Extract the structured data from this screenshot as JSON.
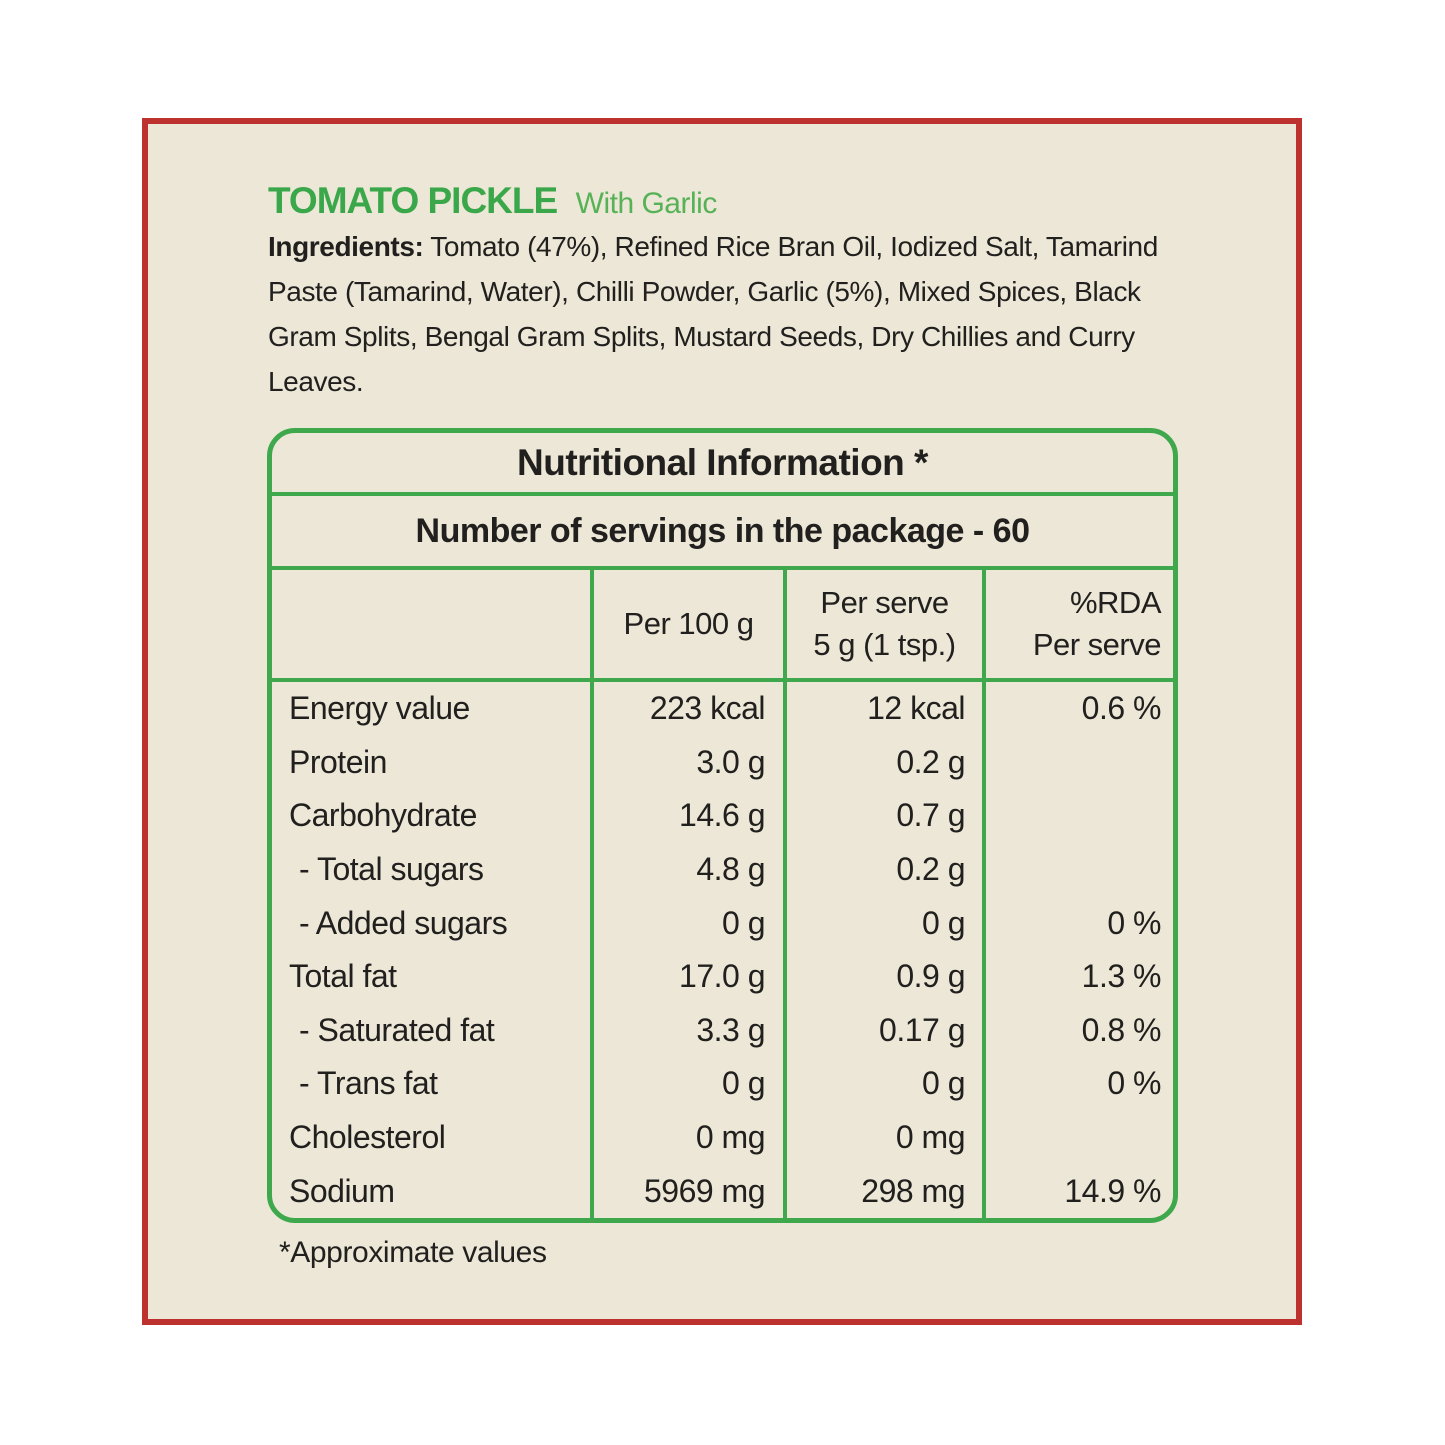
{
  "colors": {
    "frame_red": "#bd322f",
    "table_green": "#3fa84c",
    "title_green": "#3aa74a",
    "subtitle_green": "#57b257",
    "card_cream": "#ece7d6",
    "text_dark": "#21201e"
  },
  "header": {
    "title": "TOMATO PICKLE",
    "subtitle": "With Garlic"
  },
  "ingredients": {
    "label": "Ingredients:",
    "text": " Tomato (47%), Refined Rice Bran Oil, Iodized Salt, Tamarind Paste (Tamarind, Water), Chilli Powder, Garlic (5%), Mixed Spices, Black Gram Splits, Bengal Gram Splits, Mustard Seeds, Dry Chillies and Curry Leaves."
  },
  "table": {
    "title": "Nutritional Information *",
    "servings": "Number of servings in the package - 60",
    "columns": {
      "per_100g": "Per 100 g",
      "per_serve_line1": "Per serve",
      "per_serve_line2": "5 g (1 tsp.)",
      "rda_line1": "%RDA",
      "rda_line2": "Per serve"
    },
    "rows": [
      {
        "name": "Energy value",
        "per_100g": "223 kcal",
        "per_serve": "12 kcal",
        "rda": "0.6 %"
      },
      {
        "name": "Protein",
        "per_100g": "3.0 g",
        "per_serve": "0.2 g",
        "rda": ""
      },
      {
        "name": "Carbohydrate",
        "per_100g": "14.6 g",
        "per_serve": "0.7 g",
        "rda": ""
      },
      {
        "name": "- Total sugars",
        "per_100g": "4.8 g",
        "per_serve": "0.2 g",
        "rda": ""
      },
      {
        "name": "- Added sugars",
        "per_100g": "0 g",
        "per_serve": "0 g",
        "rda": "0 %"
      },
      {
        "name": "Total fat",
        "per_100g": "17.0 g",
        "per_serve": "0.9 g",
        "rda": "1.3 %"
      },
      {
        "name": "- Saturated fat",
        "per_100g": "3.3 g",
        "per_serve": "0.17 g",
        "rda": "0.8 %"
      },
      {
        "name": "- Trans fat",
        "per_100g": "0 g",
        "per_serve": "0 g",
        "rda": "0 %"
      },
      {
        "name": "Cholesterol",
        "per_100g": "0 mg",
        "per_serve": "0 mg",
        "rda": ""
      },
      {
        "name": "Sodium",
        "per_100g": "5969 mg",
        "per_serve": "298 mg",
        "rda": "14.9 %"
      }
    ]
  },
  "footnote": "*Approximate values"
}
